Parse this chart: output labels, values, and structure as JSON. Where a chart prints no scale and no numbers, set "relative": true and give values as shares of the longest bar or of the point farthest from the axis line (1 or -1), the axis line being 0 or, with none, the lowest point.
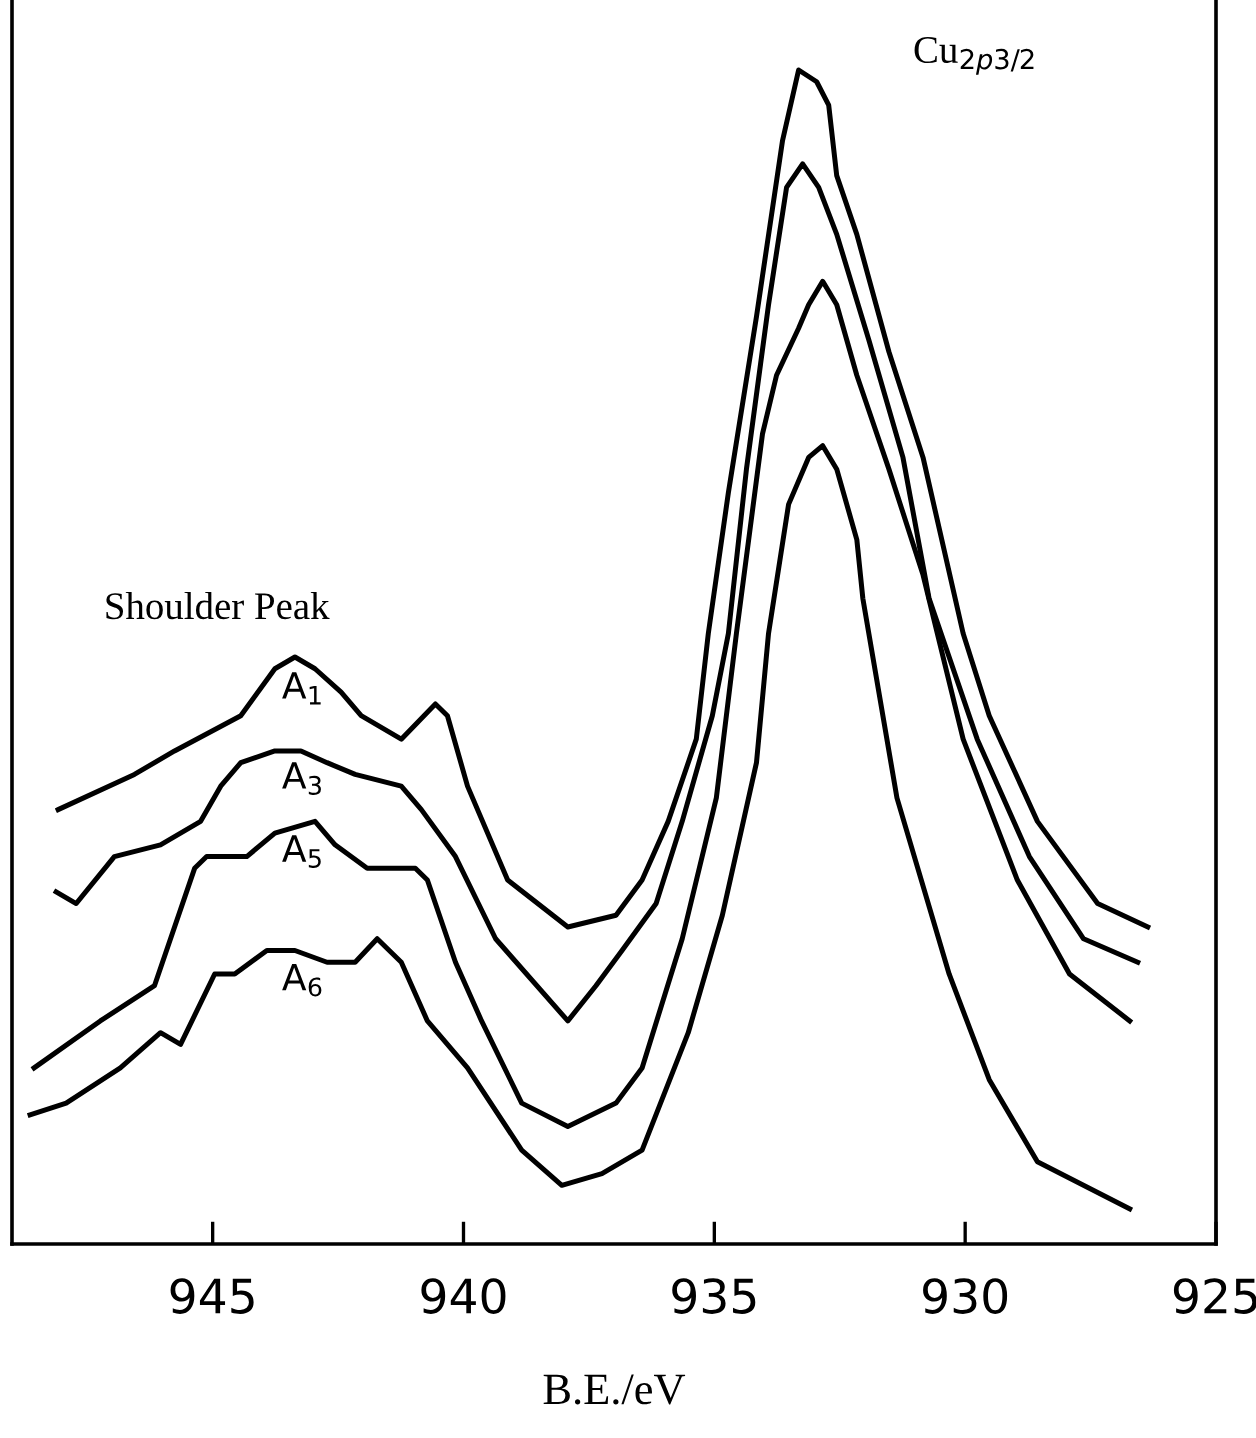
{
  "chart_data": {
    "type": "line",
    "xlabel": "B.E./eV",
    "relative": true,
    "xlim": [
      949,
      925
    ],
    "xticks": [
      945,
      940,
      935,
      930,
      925
    ],
    "annotations": [
      "Shoulder Peak",
      "Cu$_{2p3/2}$"
    ],
    "grid": false,
    "legend": false,
    "marker": "none",
    "line_style": "solid",
    "series": [
      {
        "name": "A$_{1}$",
        "color": "#000000",
        "x": [
          948.08,
          946.56,
          945.76,
          944.44,
          943.76,
          943.36,
          942.96,
          942.44,
          942.04,
          941.24,
          940.56,
          940.32,
          939.92,
          939.12,
          937.92,
          936.96,
          936.44,
          935.92,
          935.36,
          935.12,
          934.72,
          934.16,
          933.64,
          933.32,
          932.96,
          932.72,
          932.56,
          932.16,
          931.52,
          930.84,
          930.04,
          929.52,
          928.56,
          927.36,
          926.36
        ],
        "values": [
          0.37,
          0.4,
          0.42,
          0.45,
          0.49,
          0.5,
          0.49,
          0.47,
          0.45,
          0.43,
          0.46,
          0.45,
          0.39,
          0.31,
          0.27,
          0.28,
          0.31,
          0.36,
          0.43,
          0.52,
          0.64,
          0.79,
          0.94,
          1.0,
          0.99,
          0.97,
          0.91,
          0.86,
          0.76,
          0.67,
          0.52,
          0.45,
          0.36,
          0.29,
          0.27
        ]
      },
      {
        "name": "A$_{3}$",
        "color": "#000000",
        "x": [
          948.12,
          947.72,
          946.96,
          946.04,
          945.24,
          944.84,
          944.44,
          943.76,
          943.24,
          942.72,
          942.16,
          941.24,
          940.84,
          940.16,
          939.36,
          937.92,
          937.36,
          936.84,
          936.16,
          935.64,
          935.04,
          934.72,
          934.36,
          933.92,
          933.56,
          933.24,
          932.92,
          932.56,
          931.92,
          931.24,
          930.72,
          929.76,
          928.72,
          927.64,
          926.56
        ],
        "values": [
          0.3,
          0.29,
          0.33,
          0.34,
          0.36,
          0.39,
          0.41,
          0.42,
          0.42,
          0.41,
          0.4,
          0.39,
          0.37,
          0.33,
          0.26,
          0.19,
          0.22,
          0.25,
          0.29,
          0.36,
          0.45,
          0.52,
          0.66,
          0.8,
          0.9,
          0.92,
          0.9,
          0.86,
          0.77,
          0.67,
          0.55,
          0.43,
          0.33,
          0.26,
          0.24
        ]
      },
      {
        "name": "A$_{5}$",
        "color": "#000000",
        "x": [
          948.56,
          947.24,
          946.16,
          945.36,
          945.12,
          944.32,
          943.76,
          942.96,
          942.56,
          941.92,
          940.96,
          940.72,
          940.16,
          939.64,
          938.84,
          937.92,
          936.96,
          936.44,
          935.64,
          934.96,
          934.56,
          934.04,
          933.76,
          933.32,
          933.12,
          932.84,
          932.56,
          932.16,
          931.52,
          930.84,
          930.04,
          928.96,
          927.92,
          926.72
        ],
        "values": [
          0.15,
          0.19,
          0.22,
          0.32,
          0.33,
          0.33,
          0.35,
          0.36,
          0.34,
          0.32,
          0.32,
          0.31,
          0.24,
          0.19,
          0.12,
          0.1,
          0.12,
          0.15,
          0.26,
          0.38,
          0.52,
          0.69,
          0.74,
          0.78,
          0.8,
          0.82,
          0.8,
          0.74,
          0.66,
          0.57,
          0.43,
          0.31,
          0.23,
          0.19
        ]
      },
      {
        "name": "A$_{6}$",
        "color": "#000000",
        "x": [
          948.64,
          947.92,
          946.84,
          946.04,
          945.64,
          944.96,
          944.56,
          943.92,
          943.36,
          942.72,
          942.16,
          941.72,
          941.24,
          940.72,
          939.92,
          938.84,
          938.04,
          937.24,
          936.44,
          935.52,
          934.84,
          934.16,
          933.92,
          933.52,
          933.12,
          932.84,
          932.56,
          932.16,
          932.04,
          931.36,
          930.32,
          929.52,
          928.56,
          926.72
        ],
        "values": [
          0.11,
          0.12,
          0.15,
          0.18,
          0.17,
          0.23,
          0.23,
          0.25,
          0.25,
          0.24,
          0.24,
          0.26,
          0.24,
          0.19,
          0.15,
          0.08,
          0.05,
          0.06,
          0.08,
          0.18,
          0.28,
          0.41,
          0.52,
          0.63,
          0.67,
          0.68,
          0.66,
          0.6,
          0.55,
          0.38,
          0.23,
          0.14,
          0.07,
          0.03
        ]
      }
    ]
  }
}
